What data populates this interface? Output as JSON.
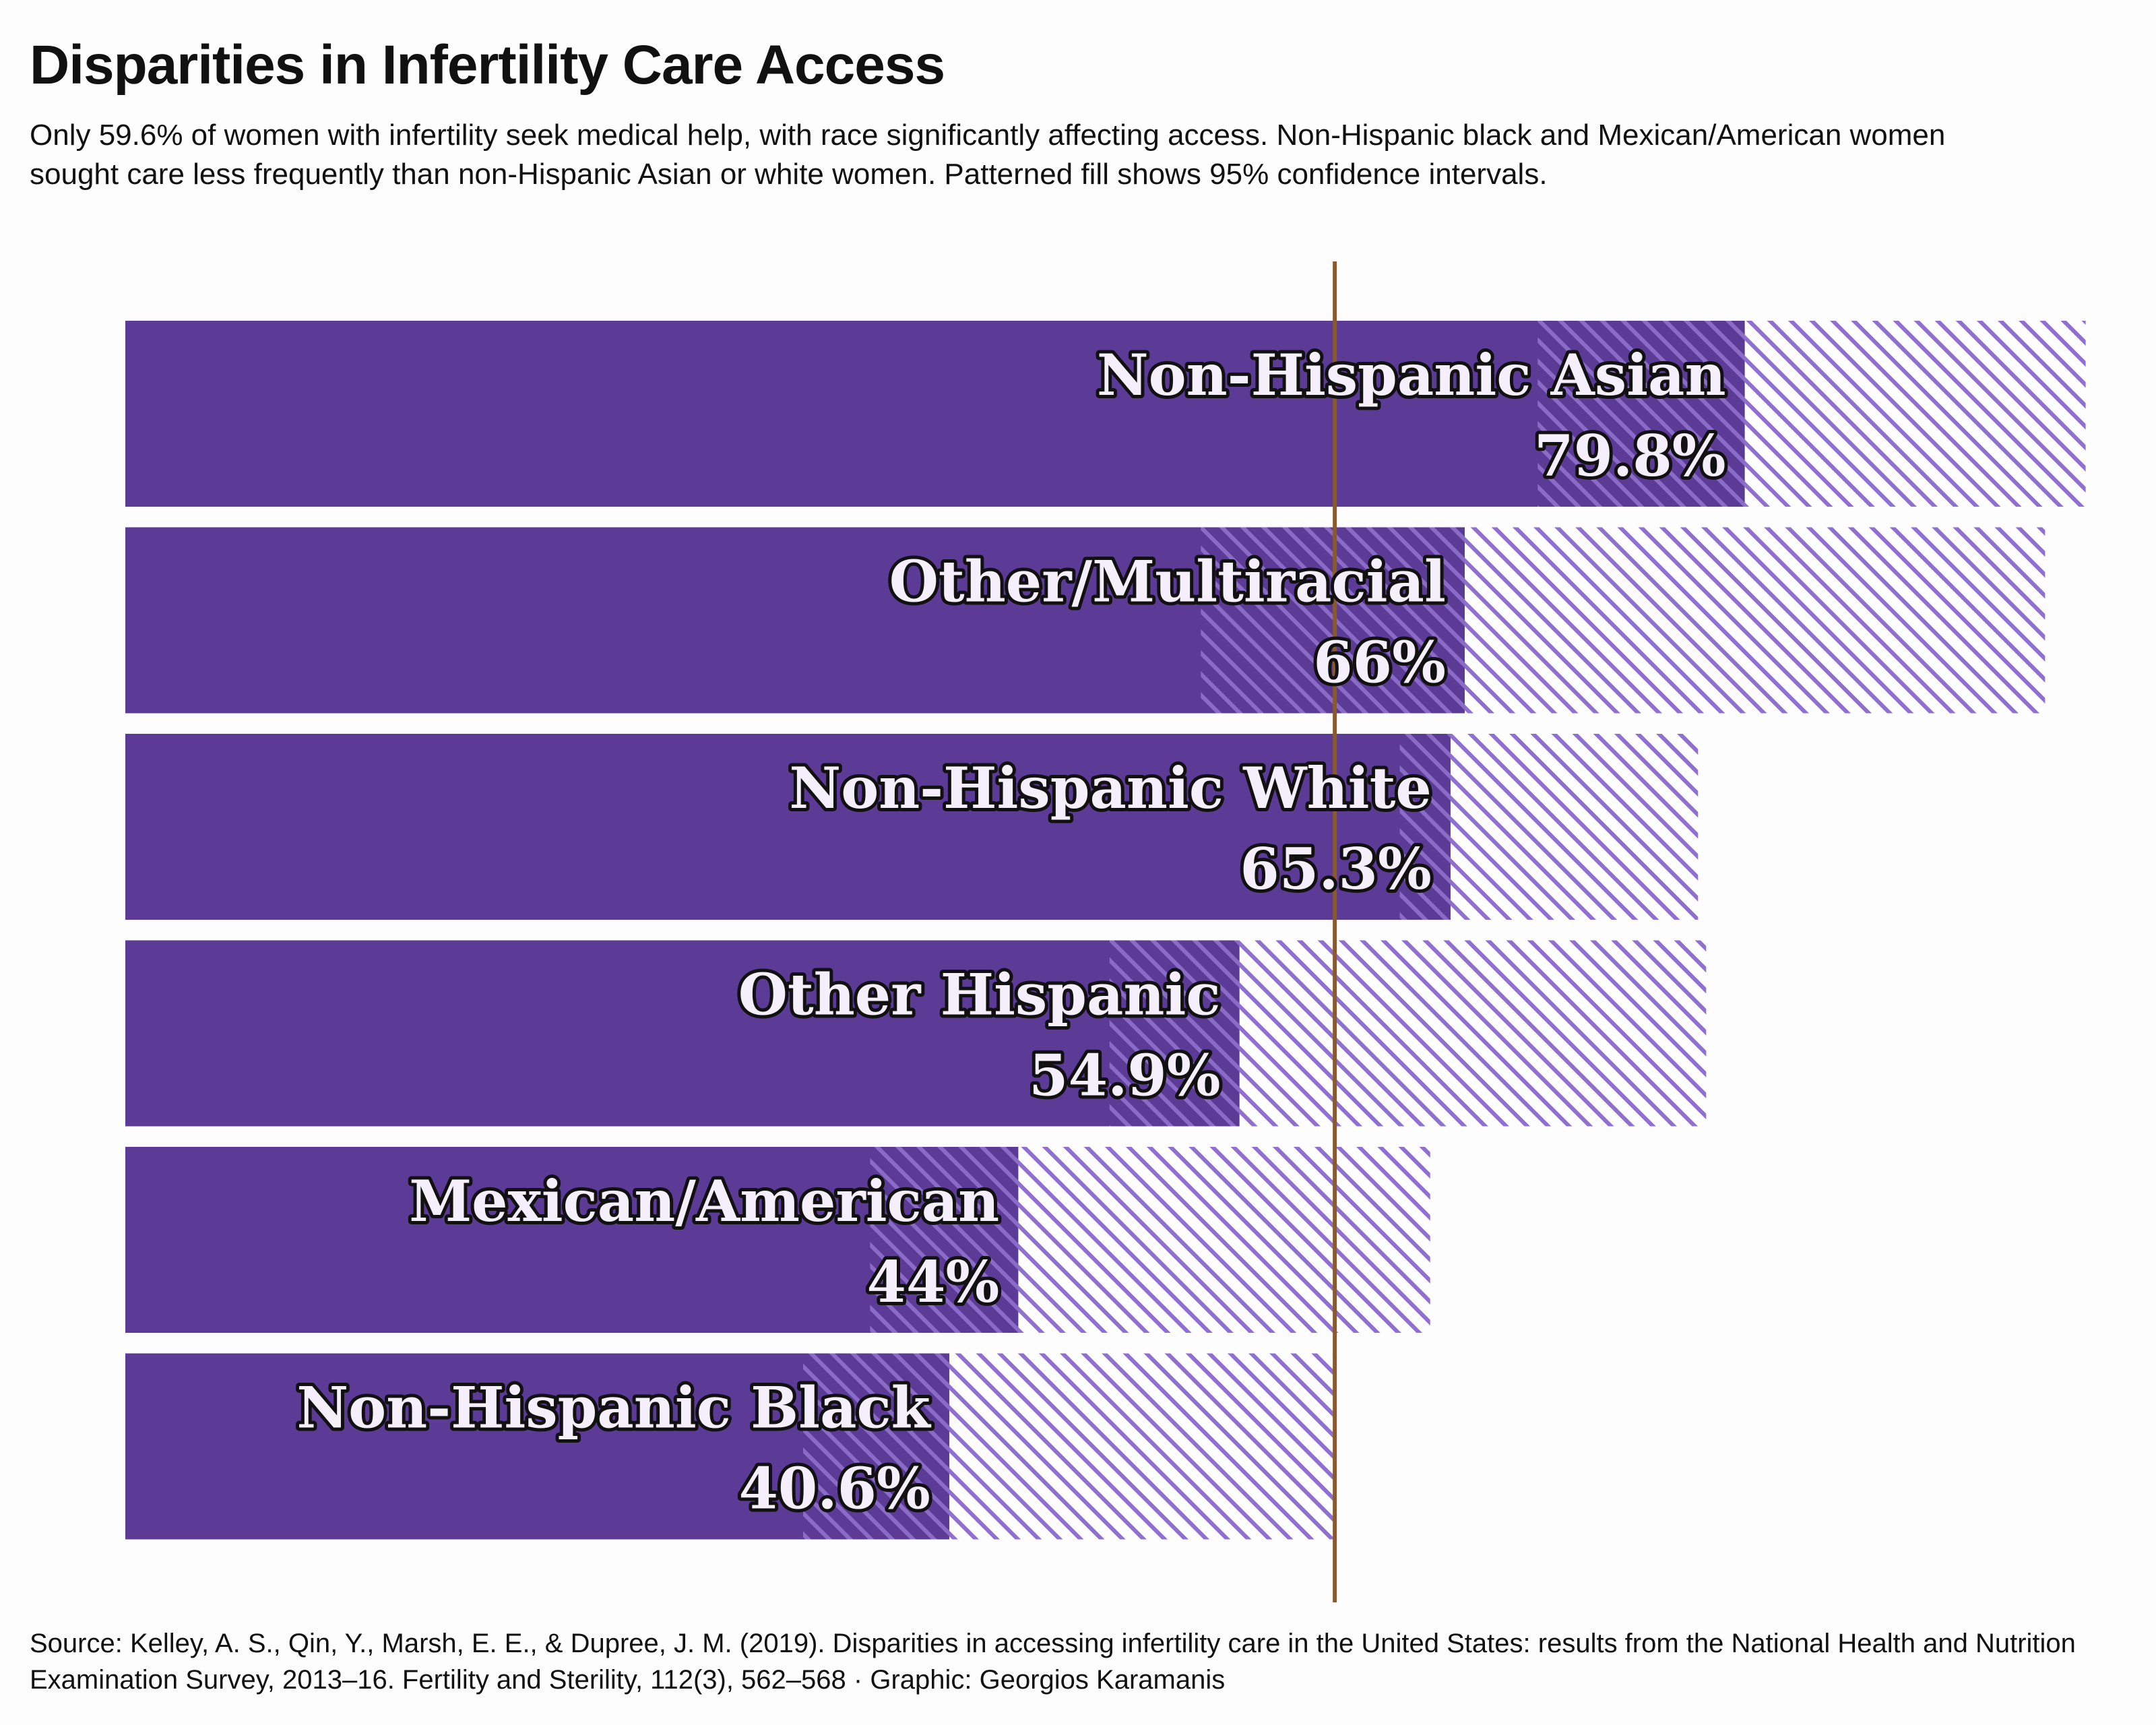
{
  "title": "Disparities in Infertility Care Access",
  "subtitle": "Only 59.6% of women with infertility seek medical help, with race significantly affecting access. Non-Hispanic black and Mexican/American women sought care less frequently than non-Hispanic Asian or white women. Patterned fill shows 95% confidence intervals.",
  "caption": "Source: Kelley, A. S., Qin, Y., Marsh, E. E., & Dupree, J. M. (2019). Disparities in accessing infertility care in the United States: results from the National Health and Nutrition Examination Survey, 2013–16. Fertility and Sterility, 112(3), 562–568 · Graphic: Georgios Karamanis",
  "colors": {
    "bar": "#5c3b96",
    "hatch_light": "#8f6fcf",
    "hatch_on_bar": "#7e60bd",
    "reference_line": "#8b5a2b",
    "background": "#fdfdfd"
  },
  "chart_data": {
    "type": "bar",
    "orientation": "horizontal",
    "reference_value": 59.6,
    "xlim": [
      0,
      100
    ],
    "series": [
      {
        "category": "Non-Hispanic Asian",
        "value": 79.8,
        "value_label": "79.8%",
        "ci_low": 69.6,
        "ci_high": 96.6
      },
      {
        "category": "Other/Multiracial",
        "value": 66,
        "value_label": "66%",
        "ci_low": 53.0,
        "ci_high": 94.6
      },
      {
        "category": "Non-Hispanic White",
        "value": 65.3,
        "value_label": "65.3%",
        "ci_low": 62.8,
        "ci_high": 77.5
      },
      {
        "category": "Other Hispanic",
        "value": 54.9,
        "value_label": "54.9%",
        "ci_low": 48.5,
        "ci_high": 77.9
      },
      {
        "category": "Mexican/American",
        "value": 44,
        "value_label": "44%",
        "ci_low": 36.7,
        "ci_high": 64.3
      },
      {
        "category": "Non-Hispanic Black",
        "value": 40.6,
        "value_label": "40.6%",
        "ci_low": 33.4,
        "ci_high": 59.6
      }
    ]
  }
}
